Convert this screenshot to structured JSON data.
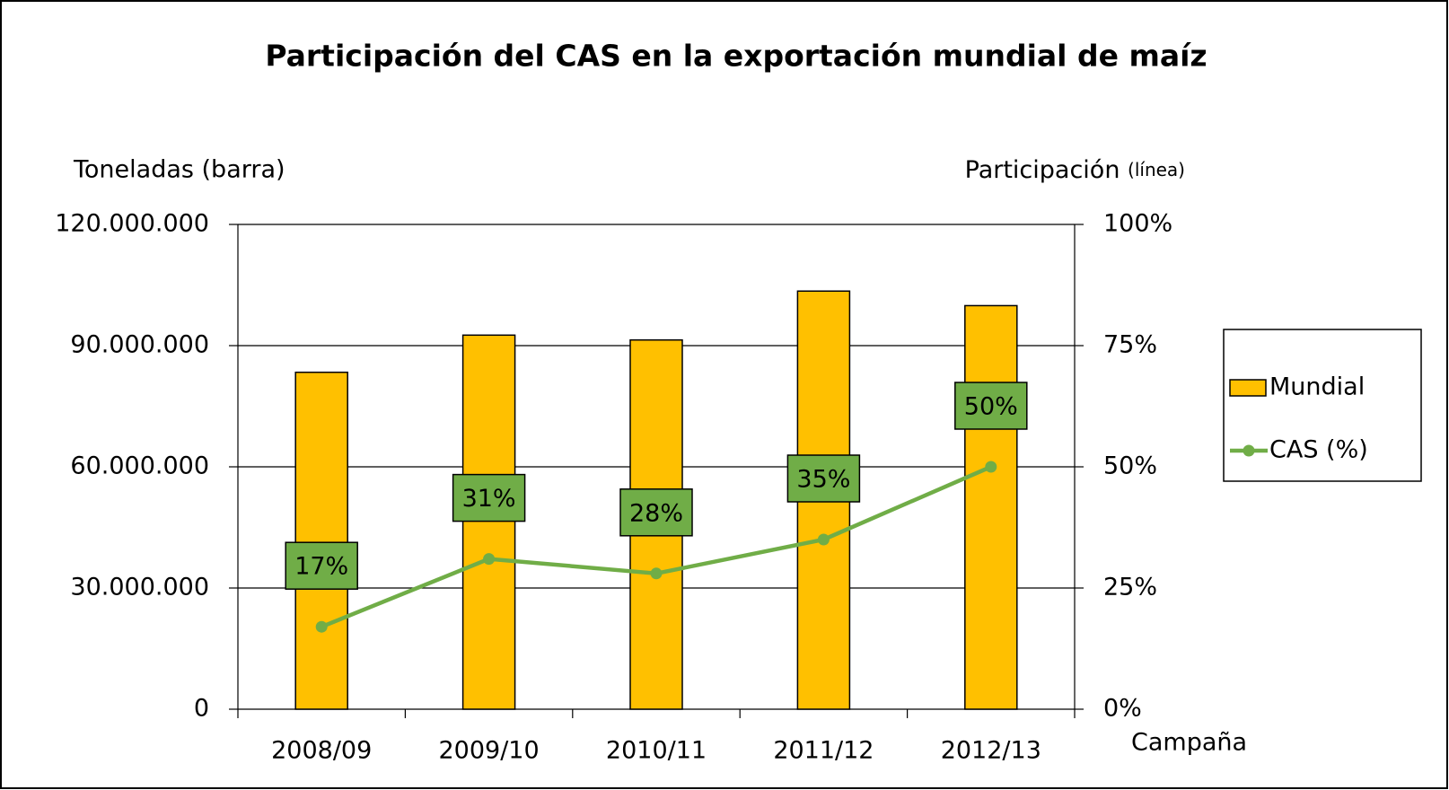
{
  "chart_data": {
    "type": "bar",
    "title": "Participación del CAS en la exportación mundial de maíz",
    "y_label": "Toneladas (barra)",
    "y2_label": "Participación",
    "y2_label_suffix": "(línea)",
    "x_label": "Campaña",
    "categories": [
      "2008/09",
      "2009/10",
      "2010/11",
      "2011/12",
      "2012/13"
    ],
    "series": [
      {
        "name": "Mundial",
        "type": "bar",
        "color": "#ffc000",
        "values": [
          83400000,
          92600000,
          91400000,
          103500000,
          99900000
        ]
      },
      {
        "name": "CAS (%)",
        "type": "line",
        "axis": "y2",
        "color": "#70ad47",
        "values": [
          17,
          31,
          28,
          35,
          50
        ],
        "value_labels": [
          "17%",
          "31%",
          "28%",
          "35%",
          "50%"
        ]
      }
    ],
    "ylim": [
      0,
      120000000
    ],
    "yticks": [
      0,
      {
        "value": 30000000,
        "label": "30.000.000"
      },
      {
        "value": 60000000,
        "label": "60.000.000"
      },
      {
        "value": 90000000,
        "label": "90.000.000"
      },
      {
        "value": 120000000,
        "label": "120.000.000"
      }
    ],
    "y2lim": [
      0,
      100
    ],
    "y2ticks": [
      {
        "value": 0,
        "label": "0%"
      },
      {
        "value": 25,
        "label": "25%"
      },
      {
        "value": 50,
        "label": "50%"
      },
      {
        "value": 75,
        "label": "75%"
      },
      {
        "value": 100,
        "label": "100%"
      }
    ],
    "grid": true,
    "legend": "right"
  }
}
